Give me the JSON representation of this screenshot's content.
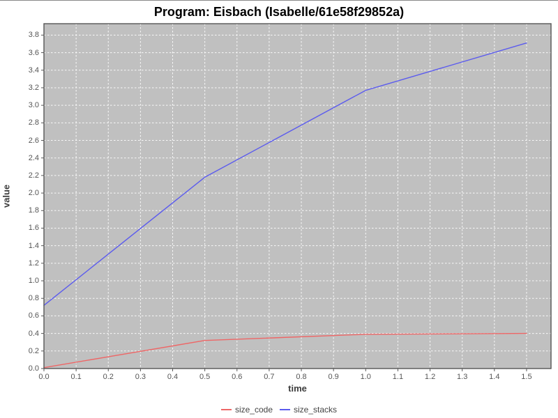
{
  "title": "Program: Eisbach (Isabelle/61e58f29852a)",
  "chart_data": {
    "type": "line",
    "title": "Program: Eisbach (Isabelle/61e58f29852a)",
    "xlabel": "time",
    "ylabel": "value",
    "xlim": [
      0,
      1.576
    ],
    "ylim": [
      0,
      3.93
    ],
    "x_ticks": [
      0.0,
      0.1,
      0.2,
      0.3,
      0.4,
      0.5,
      0.6,
      0.7,
      0.8,
      0.9,
      1.0,
      1.1,
      1.2,
      1.3,
      1.4,
      1.5
    ],
    "y_ticks": [
      0.0,
      0.2,
      0.4,
      0.6,
      0.8,
      1.0,
      1.2,
      1.4,
      1.6,
      1.8,
      2.0,
      2.2,
      2.4,
      2.6,
      2.8,
      3.0,
      3.2,
      3.4,
      3.6,
      3.8
    ],
    "grid": true,
    "legend_position": "bottom",
    "plot_background": "#c0c0c0",
    "grid_color": "#ffffff",
    "plot_border_color": "#555555",
    "tick_color": "#555555",
    "series": [
      {
        "name": "size_code",
        "color": "#ee6666",
        "points": [
          [
            0.0,
            0.01
          ],
          [
            0.5,
            0.32
          ],
          [
            1.0,
            0.39
          ],
          [
            1.5,
            0.4
          ]
        ]
      },
      {
        "name": "size_stacks",
        "color": "#5b5bee",
        "points": [
          [
            0.0,
            0.72
          ],
          [
            0.5,
            2.18
          ],
          [
            1.0,
            3.17
          ],
          [
            1.5,
            3.71
          ]
        ]
      }
    ]
  }
}
